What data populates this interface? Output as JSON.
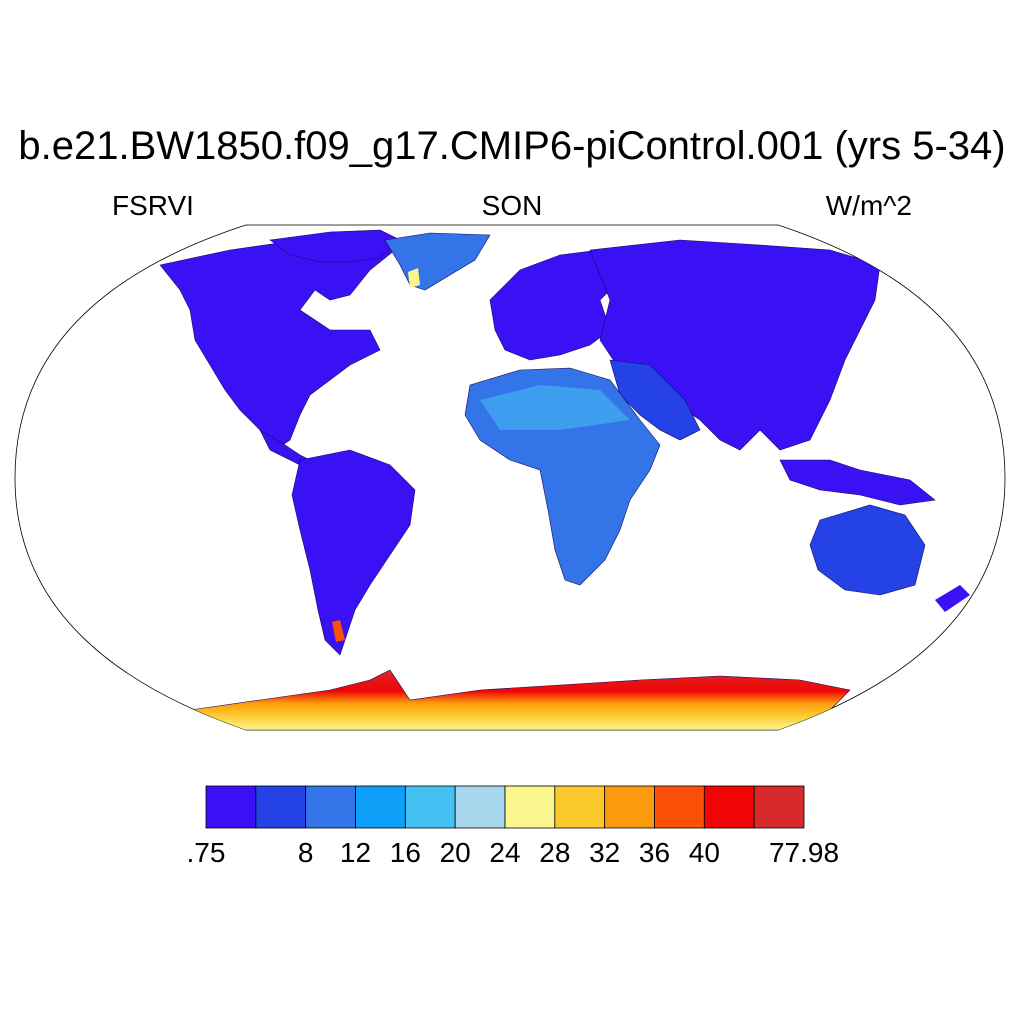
{
  "title": "b.e21.BW1850.f09_g17.CMIP6-piControl.001 (yrs 5-34)",
  "variable": "FSRVI",
  "season": "SON",
  "units": "W/m^2",
  "colorbar": {
    "colors": [
      "#3a10f5",
      "#2442e6",
      "#3374e8",
      "#0ea0f8",
      "#45c0f2",
      "#a8d8ee",
      "#fbf58e",
      "#fcc92c",
      "#fc9a0e",
      "#fc5008",
      "#f00404",
      "#d82a2a"
    ],
    "labels": [
      ".75",
      "",
      "8",
      "12",
      "16",
      "20",
      "24",
      "28",
      "32",
      "36",
      "40",
      "",
      "77.98"
    ]
  }
}
